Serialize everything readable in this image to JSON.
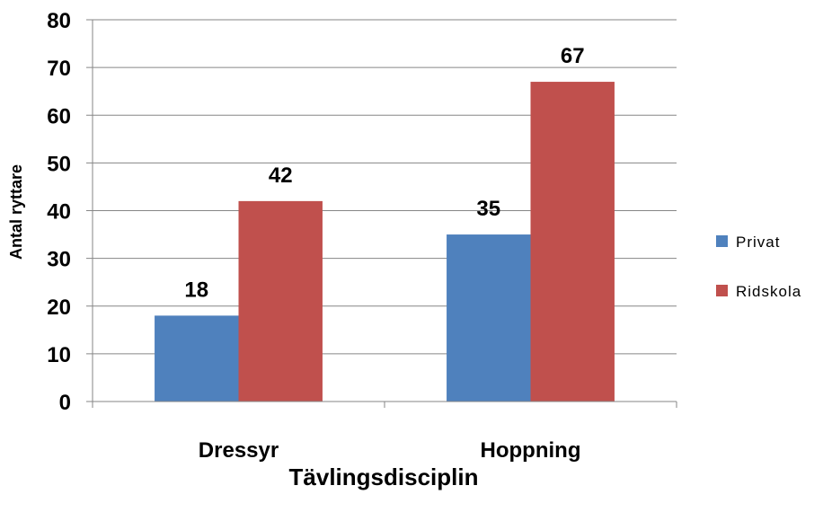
{
  "chart_data": {
    "type": "bar",
    "title": "",
    "xlabel": "Tävlingsdisciplin",
    "ylabel": "Antal ryttare",
    "categories": [
      "Dressyr",
      "Hoppning"
    ],
    "series": [
      {
        "name": "Privat",
        "values": [
          18,
          35
        ],
        "color": "#4f81bd"
      },
      {
        "name": "Ridskola",
        "values": [
          42,
          67
        ],
        "color": "#c0504d"
      }
    ],
    "ylim": [
      0,
      80
    ],
    "yticks": [
      0,
      10,
      20,
      30,
      40,
      50,
      60,
      70,
      80
    ],
    "grid": true,
    "legend": "right",
    "data_labels": true
  }
}
